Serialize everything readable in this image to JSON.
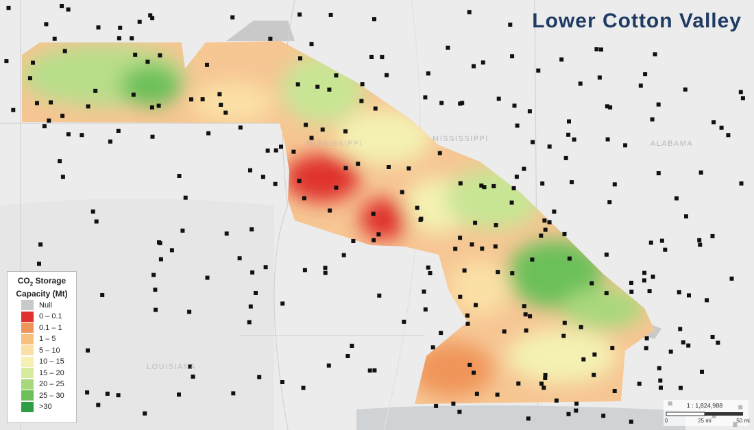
{
  "title": "Lower Cotton Valley",
  "legend": {
    "title": {
      "base": "CO",
      "subscript": "2",
      "line1_rest": "Storage",
      "line2": "Capacity (Mt)"
    },
    "items": [
      {
        "label": "Null",
        "color": "#c9c9c9"
      },
      {
        "label": "0 – 0.1",
        "color": "#e0312f"
      },
      {
        "label": "0.1 – 1",
        "color": "#f0955a"
      },
      {
        "label": "1 – 5",
        "color": "#f8bf7f"
      },
      {
        "label": "5 – 10",
        "color": "#fbe0a6"
      },
      {
        "label": "10 – 15",
        "color": "#f4f1b2"
      },
      {
        "label": "15 – 20",
        "color": "#d6eb9c"
      },
      {
        "label": "20 – 25",
        "color": "#a8d87c"
      },
      {
        "label": "25 – 30",
        "color": "#6cc05a"
      },
      {
        "label": ">30",
        "color": "#2e9e44"
      }
    ]
  },
  "map_labels": [
    "MISSISSIPPI",
    "MISSISSIPPI",
    "ALABAMA",
    "LOUISIANA"
  ],
  "scale": {
    "ratio": "1 : 1,824,988",
    "ticks": [
      "0",
      "25 mi",
      "50 mi"
    ]
  }
}
